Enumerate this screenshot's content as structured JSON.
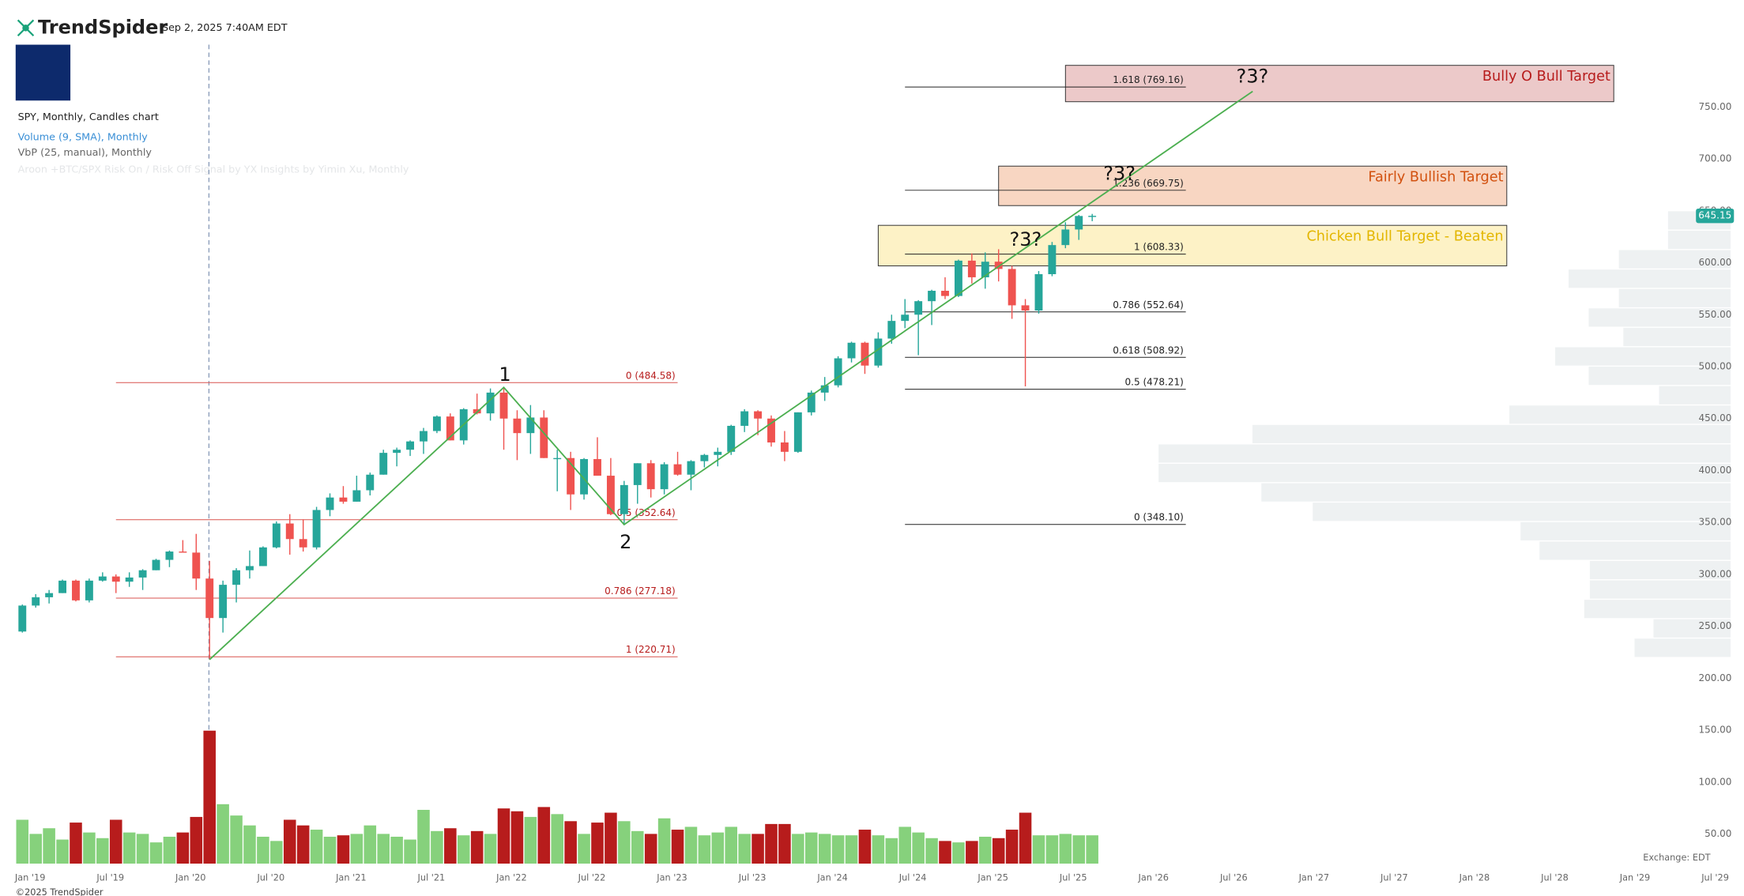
{
  "header": {
    "brand": "TrendSpider",
    "timestamp": "Sep 2, 2025 7:40AM EDT",
    "chart_name": "SPY, Monthly, Candles chart",
    "indicators": [
      "Volume (9, SMA), Monthly",
      "VbP (25, manual), Monthly",
      "Aroon +BTC/SPX Risk On / Risk Off Signal by YX Insights by Yimin Xu, Monthly"
    ],
    "copyright": "©2025 TrendSpider",
    "exchange": "Exchange: EDT"
  },
  "chart_data": {
    "type": "candlestick",
    "x": [
      "2019-01",
      "2019-02",
      "2019-03",
      "2019-04",
      "2019-05",
      "2019-06",
      "2019-07",
      "2019-08",
      "2019-09",
      "2019-10",
      "2019-11",
      "2019-12",
      "2020-01",
      "2020-02",
      "2020-03",
      "2020-04",
      "2020-05",
      "2020-06",
      "2020-07",
      "2020-08",
      "2020-09",
      "2020-10",
      "2020-11",
      "2020-12",
      "2021-01",
      "2021-02",
      "2021-03",
      "2021-04",
      "2021-05",
      "2021-06",
      "2021-07",
      "2021-08",
      "2021-09",
      "2021-10",
      "2021-11",
      "2021-12",
      "2022-01",
      "2022-02",
      "2022-03",
      "2022-04",
      "2022-05",
      "2022-06",
      "2022-07",
      "2022-08",
      "2022-09",
      "2022-10",
      "2022-11",
      "2022-12",
      "2023-01",
      "2023-02",
      "2023-03",
      "2023-04",
      "2023-05",
      "2023-06",
      "2023-07",
      "2023-08",
      "2023-09",
      "2023-10",
      "2023-11",
      "2023-12",
      "2024-01",
      "2024-02",
      "2024-03",
      "2024-04",
      "2024-05",
      "2024-06",
      "2024-07",
      "2024-08",
      "2024-09",
      "2024-10",
      "2024-11",
      "2024-12",
      "2025-01",
      "2025-02",
      "2025-03",
      "2025-04",
      "2025-05",
      "2025-06",
      "2025-07",
      "2025-08",
      "2025-09"
    ],
    "open": [
      245,
      270,
      278,
      282,
      294,
      275,
      294,
      298,
      293,
      297,
      304,
      314,
      322,
      321,
      296,
      258,
      290,
      304,
      308,
      326,
      349,
      334,
      326,
      362,
      374,
      370,
      381,
      396,
      417,
      420,
      428,
      438,
      452,
      429,
      459,
      455,
      475,
      450,
      436,
      451,
      412,
      412,
      377,
      411,
      395,
      358,
      386,
      407,
      382,
      406,
      396,
      409,
      415,
      418,
      443,
      457,
      450,
      427,
      418,
      456,
      475,
      482,
      508,
      523,
      501,
      527,
      544,
      550,
      563,
      573,
      568,
      602,
      586,
      601,
      594,
      559,
      554,
      589,
      617,
      632,
      645
    ],
    "high": [
      271,
      281,
      285,
      295,
      295,
      296,
      302,
      300,
      302,
      305,
      315,
      323,
      333,
      339,
      313,
      294,
      306,
      323,
      327,
      351,
      358,
      353,
      365,
      378,
      385,
      395,
      398,
      420,
      422,
      429,
      441,
      453,
      455,
      460,
      474,
      479,
      480,
      458,
      463,
      458,
      420,
      418,
      412,
      432,
      412,
      390,
      407,
      410,
      408,
      418,
      410,
      416,
      422,
      444,
      459,
      458,
      453,
      438,
      456,
      477,
      490,
      510,
      524,
      524,
      533,
      550,
      565,
      564,
      574,
      586,
      603,
      609,
      610,
      613,
      597,
      565,
      592,
      620,
      639,
      646,
      647
    ],
    "low": [
      244,
      268,
      272,
      282,
      274,
      273,
      293,
      282,
      288,
      285,
      304,
      307,
      321,
      285,
      218,
      244,
      273,
      296,
      308,
      325,
      319,
      322,
      324,
      356,
      368,
      370,
      376,
      396,
      404,
      414,
      416,
      436,
      429,
      425,
      454,
      448,
      420,
      410,
      416,
      412,
      380,
      362,
      372,
      395,
      357,
      349,
      368,
      374,
      377,
      395,
      381,
      403,
      404,
      415,
      437,
      434,
      423,
      409,
      417,
      453,
      467,
      480,
      504,
      493,
      499,
      522,
      537,
      511,
      540,
      565,
      567,
      580,
      575,
      582,
      546,
      481,
      551,
      587,
      614,
      622,
      640
    ],
    "close": [
      270,
      278,
      282,
      294,
      275,
      294,
      298,
      293,
      297,
      304,
      314,
      322,
      321,
      296,
      258,
      290,
      304,
      308,
      326,
      349,
      334,
      326,
      362,
      374,
      370,
      381,
      396,
      417,
      420,
      428,
      438,
      452,
      429,
      459,
      455,
      475,
      450,
      436,
      451,
      412,
      412,
      377,
      411,
      395,
      358,
      386,
      407,
      382,
      406,
      396,
      409,
      415,
      418,
      443,
      457,
      450,
      427,
      418,
      456,
      475,
      482,
      508,
      523,
      501,
      527,
      544,
      550,
      563,
      573,
      568,
      602,
      586,
      601,
      594,
      559,
      554,
      589,
      617,
      632,
      645,
      645.15
    ],
    "up_color": "#26a69a",
    "down_color": "#ef5350",
    "ylim": [
      20,
      840
    ],
    "yticks": [
      {
        "value": 50,
        "label": "50.00"
      },
      {
        "value": 100,
        "label": "100.00"
      },
      {
        "value": 150,
        "label": "150.00"
      },
      {
        "value": 200,
        "label": "200.00"
      },
      {
        "value": 250,
        "label": "250.00"
      },
      {
        "value": 300,
        "label": "300.00"
      },
      {
        "value": 350,
        "label": "350.00"
      },
      {
        "value": 400,
        "label": "400.00"
      },
      {
        "value": 450,
        "label": "450.00"
      },
      {
        "value": 500,
        "label": "500.00"
      },
      {
        "value": 550,
        "label": "550.00"
      },
      {
        "value": 600,
        "label": "600.00"
      },
      {
        "value": 650,
        "label": "650.00"
      },
      {
        "value": 700,
        "label": "700.00"
      },
      {
        "value": 750,
        "label": "750.00"
      }
    ],
    "xticks": [
      {
        "value": "2019-01",
        "label": "Jan '19"
      },
      {
        "value": "2019-07",
        "label": "Jul '19"
      },
      {
        "value": "2020-01",
        "label": "Jan '20"
      },
      {
        "value": "2020-07",
        "label": "Jul '20"
      },
      {
        "value": "2021-01",
        "label": "Jan '21"
      },
      {
        "value": "2021-07",
        "label": "Jul '21"
      },
      {
        "value": "2022-01",
        "label": "Jan '22"
      },
      {
        "value": "2022-07",
        "label": "Jul '22"
      },
      {
        "value": "2023-01",
        "label": "Jan '23"
      },
      {
        "value": "2023-07",
        "label": "Jul '23"
      },
      {
        "value": "2024-01",
        "label": "Jan '24"
      },
      {
        "value": "2024-07",
        "label": "Jul '24"
      },
      {
        "value": "2025-01",
        "label": "Jan '25"
      },
      {
        "value": "2025-07",
        "label": "Jul '25"
      },
      {
        "value": "2026-01",
        "label": "Jan '26"
      },
      {
        "value": "2026-07",
        "label": "Jul '26"
      },
      {
        "value": "2027-01",
        "label": "Jan '27"
      },
      {
        "value": "2027-07",
        "label": "Jul '27"
      },
      {
        "value": "2028-01",
        "label": "Jan '28"
      },
      {
        "value": "2028-07",
        "label": "Jul '28"
      },
      {
        "value": "2029-01",
        "label": "Jan '29"
      },
      {
        "value": "2029-07",
        "label": "Jul '29"
      }
    ],
    "volume": {
      "values": [
        1550,
        1050,
        1250,
        850,
        1450,
        1100,
        900,
        1550,
        1100,
        1050,
        750,
        950,
        1100,
        1650,
        4700,
        2100,
        1700,
        1350,
        950,
        800,
        1550,
        1350,
        1200,
        950,
        1000,
        1050,
        1350,
        1050,
        950,
        850,
        1900,
        1150,
        1250,
        1000,
        1150,
        1050,
        1950,
        1850,
        1650,
        2000,
        1750,
        1500,
        1050,
        1450,
        1800,
        1500,
        1150,
        1050,
        1600,
        1200,
        1300,
        1000,
        1100,
        1300,
        1050,
        1050,
        1400,
        1400,
        1050,
        1100,
        1050,
        1000,
        1000,
        1200,
        1000,
        900,
        1300,
        1100,
        900,
        800,
        750,
        800,
        950,
        900,
        1200,
        1800,
        1000,
        1000,
        1050,
        1000,
        1000
      ],
      "ylim": [
        0,
        4700
      ],
      "up_color": "#86d17c",
      "down_color": "#b71c1c"
    },
    "volume_profile": {
      "bins": [
        220,
        238.7,
        257.4,
        276.1,
        294.8,
        313.5,
        332.2,
        350.9,
        369.6,
        388.3,
        407,
        425.7,
        444.4,
        463.1,
        481.8,
        500.5,
        519.2,
        537.9,
        556.6,
        575.3,
        594,
        612.7,
        631.4,
        650.1
      ],
      "values": [
        86,
        69,
        131,
        126,
        126,
        171,
        188,
        374,
        420,
        512,
        512,
        428,
        198,
        64,
        127,
        157,
        96,
        127,
        100,
        145,
        100,
        56,
        56
      ],
      "color": "#eef1f2"
    },
    "fib_left": {
      "x": [
        "2019-08",
        "2023-02"
      ],
      "color": "#d9534f",
      "levels": [
        {
          "value": 484.58,
          "label": "0 (484.58)"
        },
        {
          "value": 352.64,
          "label": "0.5 (352.64)"
        },
        {
          "value": 277.18,
          "label": "0.786 (277.18)"
        },
        {
          "value": 220.71,
          "label": "1 (220.71)"
        }
      ]
    },
    "fib_right": {
      "x": [
        "2024-07",
        "2026-04"
      ],
      "color": "#222222",
      "levels": [
        {
          "value": 769.16,
          "label": "1.618 (769.16)"
        },
        {
          "value": 669.75,
          "label": "1.236 (669.75)"
        },
        {
          "value": 608.33,
          "label": "1 (608.33)"
        },
        {
          "value": 552.64,
          "label": "0.786 (552.64)"
        },
        {
          "value": 508.92,
          "label": "0.618 (508.92)"
        },
        {
          "value": 478.21,
          "label": "0.5 (478.21)"
        },
        {
          "value": 348.1,
          "label": "0 (348.10)"
        }
      ]
    },
    "zones": [
      {
        "label": "Bully O Bull Target",
        "x": [
          "2025-07",
          "2028-12"
        ],
        "range": [
          755,
          790
        ],
        "fill": "#ecc9c9",
        "text_color": "#b71c1c"
      },
      {
        "label": "Fairly Bullish Target",
        "x": [
          "2025-02",
          "2028-04"
        ],
        "range": [
          655,
          693
        ],
        "fill": "#f8d6c2",
        "text_color": "#d2510f"
      },
      {
        "label": "Chicken Bull Target - Beaten",
        "x": [
          "2024-05",
          "2028-04"
        ],
        "range": [
          597,
          636
        ],
        "fill": "#fdf2c6",
        "text_color": "#e3b600"
      }
    ],
    "trendline": {
      "x": [
        "2020-03",
        "2022-01",
        "2022-10",
        "2026-09"
      ],
      "values": [
        218,
        480,
        348,
        765
      ],
      "color": "#4caf50"
    },
    "annotations": [
      "1",
      "2",
      "?3?",
      "?3?",
      "?3?"
    ]
  }
}
